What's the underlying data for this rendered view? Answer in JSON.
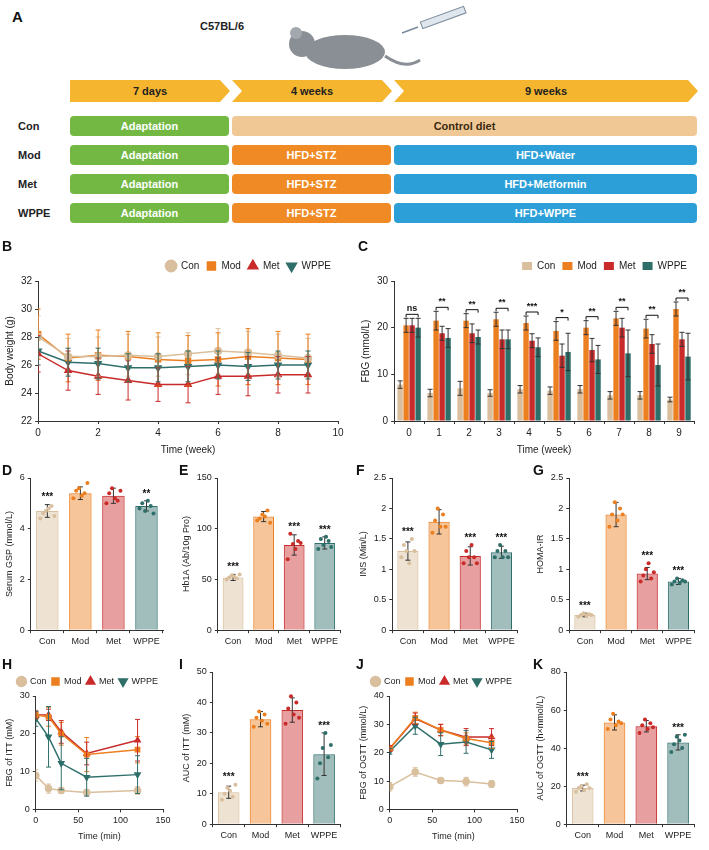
{
  "diagram": {
    "label": "A",
    "strain": "C57BL/6",
    "phases": [
      "7 days",
      "4 weeks",
      "9 weeks"
    ],
    "groups": [
      {
        "name": "Con",
        "stages": [
          "Adaptation",
          "Control diet"
        ]
      },
      {
        "name": "Mod",
        "stages": [
          "Adaptation",
          "HFD+STZ",
          "HFD+Water"
        ]
      },
      {
        "name": "Met",
        "stages": [
          "Adaptation",
          "HFD+STZ",
          "HFD+Metformin"
        ]
      },
      {
        "name": "WPPE",
        "stages": [
          "Adaptation",
          "HFD+STZ",
          "HFD+WPPE"
        ]
      }
    ]
  },
  "chart_data": [
    {
      "panel": "B",
      "type": "line",
      "x_label": "Time (week)",
      "y_label": "Body weight (g)",
      "x": [
        0,
        1,
        2,
        3,
        4,
        5,
        6,
        7,
        8,
        9
      ],
      "xlim": [
        0,
        10
      ],
      "xticks": [
        0,
        2,
        4,
        6,
        8,
        10
      ],
      "ylim": [
        22,
        32
      ],
      "yticks": [
        22,
        24,
        26,
        28,
        30,
        32
      ],
      "grid": false,
      "legend": "top",
      "series": [
        {
          "name": "Con",
          "color": "#d9bf9d",
          "marker": "circle",
          "values": [
            28.0,
            26.6,
            26.6,
            26.7,
            26.6,
            26.8,
            27.0,
            26.9,
            26.7,
            26.5
          ],
          "errors": [
            1.5,
            1.3,
            1.4,
            1.5,
            1.4,
            1.5,
            1.6,
            1.5,
            1.5,
            1.4
          ]
        },
        {
          "name": "Mod",
          "color": "#ec7f1f",
          "marker": "square",
          "values": [
            28.2,
            26.5,
            26.7,
            26.6,
            26.4,
            26.3,
            26.4,
            26.6,
            26.5,
            26.4
          ],
          "errors": [
            1.8,
            1.7,
            1.8,
            1.8,
            1.9,
            1.8,
            1.9,
            2.0,
            1.9,
            1.8
          ]
        },
        {
          "name": "Met",
          "color": "#c92a2a",
          "marker": "triangle",
          "values": [
            26.8,
            25.6,
            25.2,
            24.9,
            24.6,
            24.6,
            25.2,
            25.2,
            25.3,
            25.3
          ],
          "errors": [
            1.3,
            1.4,
            1.3,
            1.4,
            1.2,
            1.3,
            1.3,
            1.4,
            1.3,
            1.3
          ]
        },
        {
          "name": "WPPE",
          "color": "#2f6f6a",
          "marker": "triangle-down",
          "values": [
            27.0,
            26.2,
            26.1,
            25.8,
            25.8,
            25.9,
            26.0,
            25.9,
            26.0,
            26.0
          ],
          "errors": [
            1.0,
            1.0,
            1.1,
            1.0,
            1.0,
            1.1,
            1.0,
            1.0,
            1.0,
            1.0
          ]
        }
      ]
    },
    {
      "panel": "C",
      "type": "bar",
      "x_label": "Time (week)",
      "y_label": "FBG (mmol/L)",
      "categories": [
        "0",
        "1",
        "2",
        "3",
        "4",
        "5",
        "6",
        "7",
        "8",
        "9"
      ],
      "ylim": [
        0,
        30
      ],
      "yticks": [
        0,
        10,
        20,
        30
      ],
      "grid": false,
      "legend": "top",
      "series": [
        {
          "name": "Con",
          "color": "#d9bf9d",
          "values": [
            7.8,
            6.0,
            7.0,
            6.0,
            6.8,
            6.5,
            6.8,
            5.5,
            5.5,
            4.6
          ],
          "errors": [
            0.8,
            0.8,
            1.5,
            0.7,
            0.8,
            0.8,
            0.8,
            0.8,
            0.8,
            0.5
          ]
        },
        {
          "name": "Mod",
          "color": "#ec7f1f",
          "values": [
            20.5,
            21.5,
            21.5,
            21.8,
            21.0,
            19.3,
            20.0,
            22.0,
            19.8,
            24.0
          ],
          "errors": [
            1.5,
            2.0,
            1.5,
            1.5,
            1.5,
            2.0,
            1.5,
            1.5,
            2.0,
            1.5
          ]
        },
        {
          "name": "Met",
          "color": "#c92a2a",
          "values": [
            20.5,
            18.8,
            18.8,
            17.5,
            17.2,
            14.0,
            15.2,
            20.0,
            16.5,
            17.5
          ],
          "errors": [
            1.5,
            1.5,
            2.0,
            2.0,
            1.5,
            2.5,
            2.5,
            2.0,
            2.0,
            1.5
          ]
        },
        {
          "name": "WPPE",
          "color": "#2f6f6a",
          "values": [
            20.0,
            17.8,
            18.0,
            17.5,
            15.8,
            14.8,
            13.2,
            14.5,
            12.0,
            13.8
          ],
          "errors": [
            2.0,
            2.0,
            1.5,
            2.0,
            2.0,
            4.0,
            3.0,
            5.0,
            4.5,
            5.0
          ]
        }
      ],
      "significance": [
        "ns",
        "**",
        "**",
        "**",
        "***",
        "*",
        "**",
        "**",
        "**",
        "**"
      ]
    },
    {
      "panel": "D",
      "type": "bar",
      "y_label": "Serum GSP (mmol/L)",
      "categories": [
        "Con",
        "Mod",
        "Met",
        "WPPE"
      ],
      "colors": [
        "#d9bf9d",
        "#ec7f1f",
        "#c92a2a",
        "#2f6f6a"
      ],
      "ylim": [
        0,
        6
      ],
      "yticks": [
        0,
        2,
        4,
        6
      ],
      "grid": false,
      "values": [
        4.7,
        5.4,
        5.3,
        4.9
      ],
      "errors": [
        0.25,
        0.25,
        0.3,
        0.2
      ],
      "points": [
        [
          4.4,
          4.6,
          4.7,
          4.8,
          4.9,
          4.5
        ],
        [
          5.2,
          5.5,
          5.6,
          5.3,
          5.4,
          5.8
        ],
        [
          5.0,
          5.4,
          5.6,
          5.2,
          5.1,
          5.5
        ],
        [
          4.8,
          5.0,
          4.7,
          5.1,
          4.9,
          4.6
        ]
      ],
      "significance": [
        "***",
        null,
        null,
        "**"
      ]
    },
    {
      "panel": "E",
      "type": "bar",
      "y_label": "Hb1A (Ab/10g Pro)",
      "categories": [
        "Con",
        "Mod",
        "Met",
        "WPPE"
      ],
      "colors": [
        "#d9bf9d",
        "#ec7f1f",
        "#c92a2a",
        "#2f6f6a"
      ],
      "ylim": [
        0,
        150
      ],
      "yticks": [
        0,
        50,
        100,
        150
      ],
      "grid": false,
      "values": [
        52,
        112,
        84,
        86
      ],
      "errors": [
        3,
        5,
        10,
        6
      ],
      "points": [
        [
          50,
          52,
          54,
          53,
          51,
          55
        ],
        [
          108,
          110,
          114,
          112,
          118,
          106
        ],
        [
          70,
          95,
          85,
          80,
          88,
          86
        ],
        [
          80,
          90,
          84,
          92,
          88,
          82
        ]
      ],
      "significance": [
        "***",
        null,
        "***",
        "***"
      ]
    },
    {
      "panel": "F",
      "type": "bar",
      "y_label": "INS (Min/L)",
      "categories": [
        "Con",
        "Mod",
        "Met",
        "WPPE"
      ],
      "colors": [
        "#d9bf9d",
        "#ec7f1f",
        "#c92a2a",
        "#2f6f6a"
      ],
      "ylim": [
        0,
        2.5
      ],
      "yticks": [
        0,
        0.5,
        1,
        1.5,
        2,
        2.5
      ],
      "grid": false,
      "values": [
        1.3,
        1.78,
        1.22,
        1.28
      ],
      "errors": [
        0.15,
        0.2,
        0.15,
        0.1
      ],
      "points": [
        [
          1.2,
          1.4,
          1.3,
          1.1,
          1.5,
          1.3
        ],
        [
          1.6,
          1.8,
          2.0,
          1.7,
          1.9,
          1.7
        ],
        [
          1.1,
          1.3,
          1.2,
          1.4,
          1.2,
          1.1
        ],
        [
          1.2,
          1.3,
          1.4,
          1.2,
          1.3,
          1.2
        ]
      ],
      "significance": [
        "***",
        null,
        "***",
        "***"
      ]
    },
    {
      "panel": "G",
      "type": "bar",
      "y_label": "HOMA-IR",
      "categories": [
        "Con",
        "Mod",
        "Met",
        "WPPE"
      ],
      "colors": [
        "#d9bf9d",
        "#ec7f1f",
        "#c92a2a",
        "#2f6f6a"
      ],
      "ylim": [
        0,
        2.5
      ],
      "yticks": [
        0,
        0.5,
        1,
        1.5,
        2,
        2.5
      ],
      "grid": false,
      "values": [
        0.25,
        1.9,
        0.93,
        0.8
      ],
      "errors": [
        0.03,
        0.2,
        0.1,
        0.05
      ],
      "points": [
        [
          0.22,
          0.25,
          0.28,
          0.24,
          0.26,
          0.25
        ],
        [
          1.7,
          1.9,
          2.1,
          1.8,
          2.0,
          1.9
        ],
        [
          0.8,
          0.9,
          1.0,
          1.1,
          0.85,
          0.95
        ],
        [
          0.75,
          0.8,
          0.85,
          0.78,
          0.82,
          0.8
        ]
      ],
      "significance": [
        "***",
        null,
        "***",
        "***"
      ]
    },
    {
      "panel": "H",
      "type": "line",
      "x_label": "Time (min)",
      "y_label": "FBG of ITT (mM)",
      "x": [
        0,
        15,
        30,
        60,
        120
      ],
      "xlim": [
        0,
        150
      ],
      "xticks": [
        0,
        50,
        100,
        150
      ],
      "ylim": [
        0,
        30
      ],
      "yticks": [
        0,
        10,
        20,
        30
      ],
      "grid": false,
      "legend": "top",
      "series": [
        {
          "name": "Con",
          "color": "#d9bf9d",
          "marker": "circle",
          "values": [
            9,
            5.5,
            5.0,
            4.5,
            5.0
          ],
          "errors": [
            1.5,
            1.2,
            0.8,
            0.8,
            1.0
          ]
        },
        {
          "name": "Mod",
          "color": "#ec7f1f",
          "marker": "square",
          "values": [
            25,
            24.5,
            20,
            14.5,
            15.8
          ],
          "errors": [
            1.0,
            2.5,
            3.0,
            4.5,
            3.5
          ]
        },
        {
          "name": "Met",
          "color": "#c92a2a",
          "marker": "triangle",
          "values": [
            25,
            25,
            20.5,
            14.8,
            18.3
          ],
          "errors": [
            1.0,
            1.5,
            3.0,
            3.0,
            5.5
          ]
        },
        {
          "name": "WPPE",
          "color": "#2f6f6a",
          "marker": "triangle-down",
          "values": [
            24,
            19.2,
            12.2,
            8.5,
            9.2
          ],
          "errors": [
            2.0,
            8.0,
            7.0,
            5.0,
            5.0
          ]
        }
      ]
    },
    {
      "panel": "I",
      "type": "bar",
      "y_label": "AUC of ITT (mM)",
      "categories": [
        "Con",
        "Mod",
        "Met",
        "WPPE"
      ],
      "colors": [
        "#d9bf9d",
        "#ec7f1f",
        "#c92a2a",
        "#2f6f6a"
      ],
      "ylim": [
        0,
        50
      ],
      "yticks": [
        0,
        10,
        20,
        30,
        40,
        50
      ],
      "grid": false,
      "values": [
        10.5,
        34.5,
        37.5,
        23
      ],
      "errors": [
        2,
        2.5,
        4,
        7
      ],
      "points": [
        [
          8,
          10,
          12,
          11,
          9,
          13
        ],
        [
          32,
          35,
          37,
          34,
          36,
          33
        ],
        [
          33,
          38,
          42,
          36,
          40,
          35
        ],
        [
          15,
          20,
          25,
          30,
          22,
          26
        ]
      ],
      "significance": [
        "***",
        null,
        null,
        "***"
      ]
    },
    {
      "panel": "J",
      "type": "line",
      "x_label": "Time (min)",
      "y_label": "FBG of OGTT (mmol/L)",
      "x": [
        0,
        30,
        60,
        90,
        120
      ],
      "xlim": [
        0,
        150
      ],
      "xticks": [
        0,
        50,
        100,
        150
      ],
      "ylim": [
        0,
        40
      ],
      "yticks": [
        0,
        10,
        20,
        30,
        40
      ],
      "grid": false,
      "legend": "top",
      "series": [
        {
          "name": "Con",
          "color": "#d9bf9d",
          "marker": "circle",
          "values": [
            8,
            13.2,
            10.2,
            9.8,
            9
          ],
          "errors": [
            1.5,
            1.5,
            1.0,
            1.5,
            1.2
          ]
        },
        {
          "name": "Mod",
          "color": "#ec7f1f",
          "marker": "square",
          "values": [
            21.5,
            32.3,
            28,
            25,
            23.5
          ],
          "errors": [
            1.0,
            2.0,
            2.0,
            2.0,
            2.0
          ]
        },
        {
          "name": "Met",
          "color": "#c92a2a",
          "marker": "triangle",
          "values": [
            21.5,
            32.0,
            28.0,
            25.5,
            25.5
          ],
          "errors": [
            1.0,
            2.0,
            2.0,
            3.0,
            3.0
          ]
        },
        {
          "name": "WPPE",
          "color": "#2f6f6a",
          "marker": "triangle-down",
          "values": [
            20.5,
            29.5,
            23,
            23.8,
            21
          ],
          "errors": [
            1.0,
            3.0,
            4.0,
            4.0,
            3.0
          ]
        }
      ]
    },
    {
      "panel": "K",
      "type": "bar",
      "y_label": "AUC of OGTT (h×mmol/L)",
      "categories": [
        "Con",
        "Mod",
        "Met",
        "WPPE"
      ],
      "colors": [
        "#d9bf9d",
        "#ec7f1f",
        "#c92a2a",
        "#2f6f6a"
      ],
      "ylim": [
        0,
        80
      ],
      "yticks": [
        0,
        20,
        40,
        60,
        80
      ],
      "grid": false,
      "values": [
        19,
        53.5,
        51.5,
        43
      ],
      "errors": [
        1.5,
        4,
        3,
        4
      ],
      "points": [
        [
          17,
          19,
          20,
          18,
          21,
          19
        ],
        [
          50,
          55,
          58,
          52,
          54,
          53
        ],
        [
          48,
          52,
          55,
          50,
          53,
          51
        ],
        [
          38,
          42,
          46,
          44,
          40,
          47
        ]
      ],
      "significance": [
        "***",
        null,
        null,
        "***"
      ]
    }
  ]
}
